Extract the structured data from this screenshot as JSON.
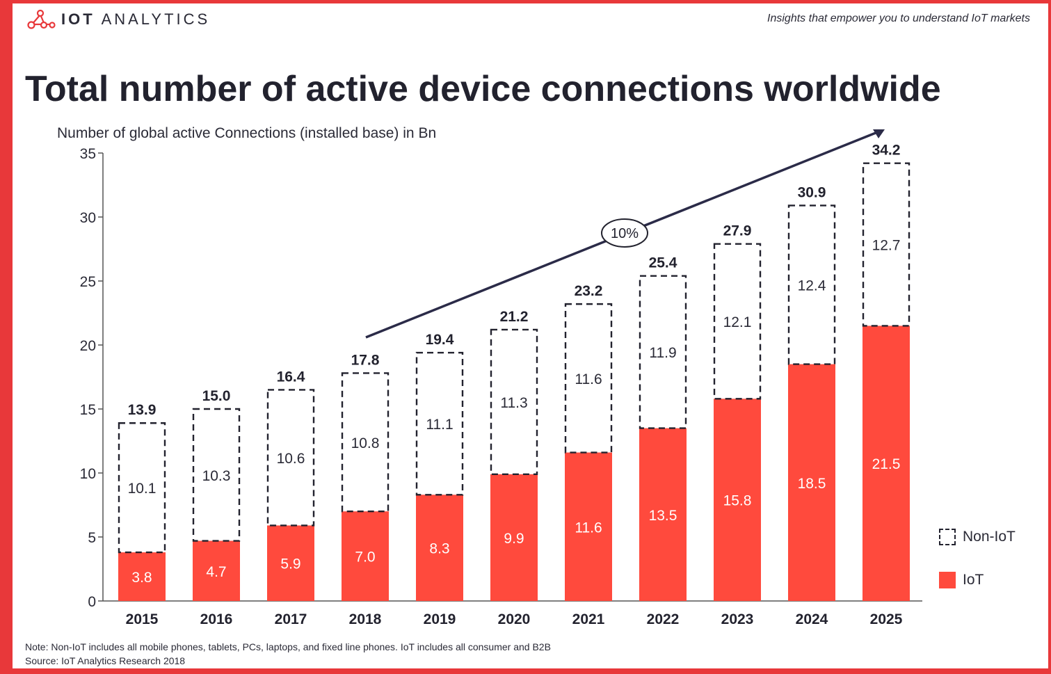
{
  "brand": {
    "name_bold": "IOT",
    "name_rest": " ANALYTICS"
  },
  "tagline": "Insights that empower you to understand IoT markets",
  "chart_data": {
    "type": "bar",
    "stacked": true,
    "title": "Total number of active device connections worldwide",
    "ylabel": "Number of global active Connections (installed base) in Bn",
    "xlabel": "",
    "ylim": [
      0,
      35
    ],
    "yticks": [
      0,
      5,
      10,
      15,
      20,
      25,
      30,
      35
    ],
    "categories": [
      "2015",
      "2016",
      "2017",
      "2018",
      "2019",
      "2020",
      "2021",
      "2022",
      "2023",
      "2024",
      "2025"
    ],
    "series": [
      {
        "name": "IoT",
        "values": [
          3.8,
          4.7,
          5.9,
          7.0,
          8.3,
          9.9,
          11.6,
          13.5,
          15.8,
          18.5,
          21.5
        ],
        "color": "#ff4a3d"
      },
      {
        "name": "Non-IoT",
        "values": [
          10.1,
          10.3,
          10.6,
          10.8,
          11.1,
          11.3,
          11.6,
          11.9,
          12.1,
          12.4,
          12.7
        ],
        "color": "#ffffff"
      }
    ],
    "totals": [
      "13.9",
      "15.0",
      "16.4",
      "17.8",
      "19.4",
      "21.2",
      "23.2",
      "25.4",
      "27.9",
      "30.9",
      "34.2"
    ],
    "annotation": {
      "text": "10%",
      "from_category": "2018",
      "to_category": "2025"
    },
    "legend": {
      "position": "right",
      "items": [
        "Non-IoT",
        "IoT"
      ]
    },
    "grid": false
  },
  "footnote": {
    "note": "Note: Non-IoT includes all mobile phones, tablets, PCs, laptops, and fixed line phones. IoT includes all consumer and B2B",
    "source": "Source: IoT Analytics Research 2018"
  },
  "colors": {
    "accent": "#e8383a",
    "iot": "#ff4a3d",
    "text": "#22222e"
  }
}
